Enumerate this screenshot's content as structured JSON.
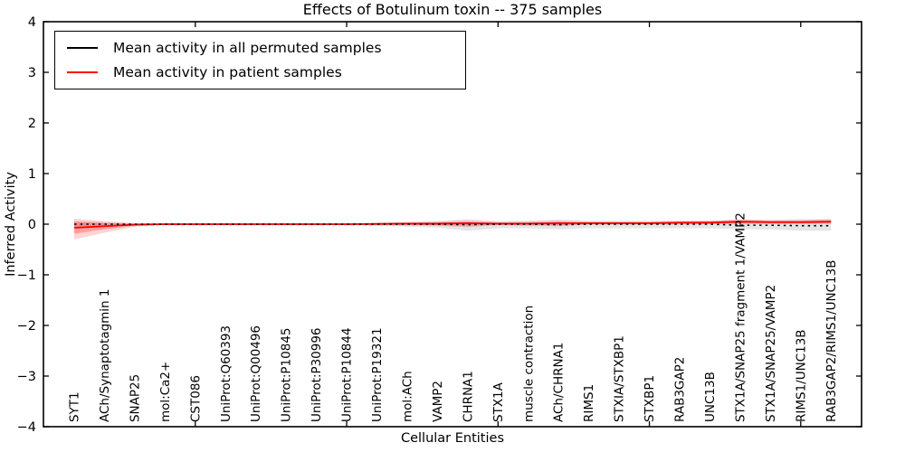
{
  "title": "Effects of Botulinum toxin -- 375 samples",
  "legend": {
    "entries": [
      {
        "label": "Mean activity in all permuted samples",
        "color": "#000000"
      },
      {
        "label": "Mean activity in patient samples",
        "color": "#ff0000"
      }
    ]
  },
  "chart_data": {
    "type": "line",
    "title": "Effects of Botulinum toxin -- 375 samples",
    "xlabel": "Cellular Entities",
    "ylabel": "Inferred Activity",
    "ylim": [
      -4,
      4
    ],
    "yticks": [
      -4,
      -3,
      -2,
      -1,
      0,
      1,
      2,
      3,
      4
    ],
    "grid": false,
    "legend_position": "upper left",
    "categories": [
      "SYT1",
      "ACh/Synaptotagmin 1",
      "SNAP25",
      "mol:Ca2+",
      "CST086",
      "UniProt:Q60393",
      "UniProt:Q00496",
      "UniProt:P10845",
      "UniProt:P30996",
      "UniProt:P10844",
      "UniProt:P19321",
      "mol:ACh",
      "VAMP2",
      "CHRNA1",
      "STX1A",
      "muscle contraction",
      "ACh/CHRNA1",
      "RIMS1",
      "STXIA/STXBP1",
      "STXBP1",
      "RAB3GAP2",
      "UNC13B",
      "STX1A/SNAP25 fragment 1/VAMP2",
      "STX1A/SNAP25/VAMP2",
      "RIMS1/UNC13B",
      "RAB3GAP2/RIMS1/UNC13B"
    ],
    "xtick_indices": [
      4,
      9,
      14,
      19,
      24
    ],
    "series": [
      {
        "name": "Mean activity in all permuted samples",
        "color": "#000000",
        "line_style": "dotted",
        "values": [
          0,
          0,
          0,
          0,
          0,
          0,
          0,
          0,
          0,
          0,
          0,
          0,
          0,
          -0.01,
          0,
          0,
          -0.01,
          0,
          0,
          0,
          0,
          0,
          -0.02,
          -0.02,
          -0.03,
          -0.03
        ],
        "band_color": "rgba(0,0,0,0.10)",
        "band_upper": [
          0.06,
          0.04,
          0.02,
          0.02,
          0.02,
          0.02,
          0.02,
          0.02,
          0.02,
          0.02,
          0.03,
          0.04,
          0.06,
          0.1,
          0.06,
          0.07,
          0.09,
          0.07,
          0.07,
          0.07,
          0.07,
          0.07,
          0.08,
          0.08,
          0.1,
          0.1
        ],
        "band_lower": [
          -0.06,
          -0.04,
          -0.02,
          -0.02,
          -0.02,
          -0.02,
          -0.02,
          -0.02,
          -0.02,
          -0.02,
          -0.03,
          -0.05,
          -0.07,
          -0.13,
          -0.08,
          -0.08,
          -0.1,
          -0.08,
          -0.08,
          -0.08,
          -0.08,
          -0.08,
          -0.1,
          -0.1,
          -0.13,
          -0.13
        ]
      },
      {
        "name": "Mean activity in patient samples",
        "color": "#ff0000",
        "line_style": "solid",
        "values": [
          -0.07,
          -0.04,
          -0.01,
          0,
          0,
          0,
          0,
          0,
          0,
          0,
          0.005,
          0.01,
          0.01,
          0.02,
          0.01,
          0.01,
          0.02,
          0.02,
          0.02,
          0.02,
          0.03,
          0.03,
          0.05,
          0.04,
          0.04,
          0.05
        ],
        "band_outer_color": "rgba(255,0,0,0.17)",
        "band_outer_upper": [
          0.11,
          0.06,
          0.02,
          0.01,
          0.01,
          0.01,
          0.01,
          0.01,
          0.01,
          0.01,
          0.03,
          0.04,
          0.05,
          0.07,
          0.04,
          0.05,
          0.07,
          0.05,
          0.05,
          0.05,
          0.06,
          0.07,
          0.1,
          0.08,
          0.08,
          0.1
        ],
        "band_outer_lower": [
          -0.3,
          -0.17,
          -0.05,
          -0.01,
          -0.01,
          -0.01,
          -0.01,
          -0.01,
          -0.01,
          -0.01,
          -0.02,
          -0.02,
          -0.03,
          -0.06,
          -0.02,
          -0.03,
          -0.04,
          -0.01,
          -0.01,
          -0.01,
          -0.01,
          0,
          0,
          0,
          0,
          0
        ],
        "band_inner_color": "rgba(255,0,0,0.25)",
        "band_inner_upper": [
          0.05,
          0.02,
          0.01,
          0.005,
          0.005,
          0.005,
          0.005,
          0.005,
          0.005,
          0.005,
          0.02,
          0.02,
          0.03,
          0.04,
          0.02,
          0.03,
          0.04,
          0.03,
          0.03,
          0.03,
          0.04,
          0.05,
          0.07,
          0.06,
          0.06,
          0.07
        ],
        "band_inner_lower": [
          -0.19,
          -0.1,
          -0.03,
          -0.005,
          -0.005,
          -0.005,
          -0.005,
          -0.005,
          -0.005,
          -0.005,
          -0.01,
          -0.01,
          -0.02,
          -0.03,
          -0.01,
          -0.01,
          -0.02,
          0,
          0,
          0,
          0.01,
          0.01,
          0.02,
          0.02,
          0.02,
          0.02
        ]
      }
    ]
  }
}
